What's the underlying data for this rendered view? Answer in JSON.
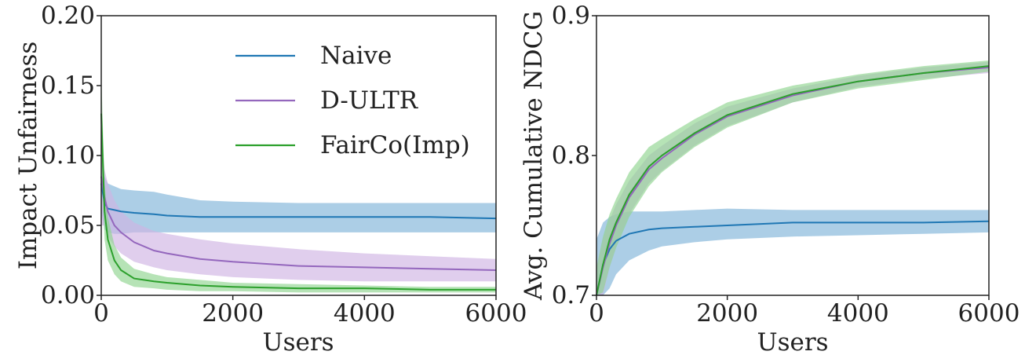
{
  "chart_data": [
    {
      "type": "line",
      "xlabel": "Users",
      "ylabel": "Impact Unfairness",
      "xlim": [
        0,
        6000
      ],
      "ylim": [
        0.0,
        0.2
      ],
      "xticks": [
        0,
        2000,
        4000,
        6000
      ],
      "yticks": [
        0.0,
        0.05,
        0.1,
        0.15,
        0.2
      ],
      "xtick_labels": [
        "0",
        "2000",
        "4000",
        "6000"
      ],
      "ytick_labels": [
        "0.00",
        "0.05",
        "0.10",
        "0.15",
        "0.20"
      ],
      "legend": "top-center",
      "series": [
        {
          "name": "Naive",
          "color": "#1f77b4",
          "band_color": "#7fb3d9",
          "x": [
            0,
            50,
            100,
            200,
            300,
            500,
            800,
            1000,
            1500,
            2000,
            3000,
            4000,
            5000,
            6000
          ],
          "y": [
            0.08,
            0.066,
            0.062,
            0.061,
            0.06,
            0.059,
            0.058,
            0.057,
            0.056,
            0.056,
            0.056,
            0.056,
            0.056,
            0.055
          ],
          "upper": [
            0.1,
            0.085,
            0.08,
            0.078,
            0.076,
            0.075,
            0.074,
            0.072,
            0.068,
            0.067,
            0.066,
            0.066,
            0.066,
            0.066
          ],
          "lower": [
            0.06,
            0.047,
            0.045,
            0.044,
            0.044,
            0.045,
            0.045,
            0.045,
            0.045,
            0.045,
            0.045,
            0.045,
            0.045,
            0.045
          ]
        },
        {
          "name": "D-ULTR",
          "color": "#9467bd",
          "band_color": "#cfb3e3",
          "x": [
            0,
            50,
            100,
            200,
            300,
            500,
            800,
            1000,
            1500,
            2000,
            3000,
            4000,
            5000,
            6000
          ],
          "y": [
            0.085,
            0.07,
            0.06,
            0.05,
            0.045,
            0.038,
            0.032,
            0.03,
            0.026,
            0.024,
            0.021,
            0.02,
            0.019,
            0.018
          ],
          "upper": [
            0.12,
            0.09,
            0.08,
            0.068,
            0.06,
            0.052,
            0.046,
            0.044,
            0.04,
            0.037,
            0.033,
            0.03,
            0.028,
            0.026
          ],
          "lower": [
            0.05,
            0.05,
            0.042,
            0.035,
            0.03,
            0.024,
            0.02,
            0.018,
            0.015,
            0.013,
            0.011,
            0.01,
            0.01,
            0.01
          ]
        },
        {
          "name": "FairCo(Imp)",
          "color": "#2ca02c",
          "band_color": "#8fd48f",
          "x": [
            0,
            50,
            100,
            200,
            300,
            500,
            800,
            1000,
            1500,
            2000,
            3000,
            4000,
            5000,
            6000
          ],
          "y": [
            0.13,
            0.06,
            0.04,
            0.025,
            0.018,
            0.012,
            0.01,
            0.009,
            0.007,
            0.006,
            0.005,
            0.005,
            0.004,
            0.004
          ],
          "upper": [
            0.16,
            0.08,
            0.056,
            0.036,
            0.027,
            0.019,
            0.015,
            0.013,
            0.011,
            0.009,
            0.008,
            0.007,
            0.006,
            0.006
          ],
          "lower": [
            0.1,
            0.04,
            0.025,
            0.015,
            0.01,
            0.006,
            0.005,
            0.004,
            0.003,
            0.003,
            0.002,
            0.002,
            0.002,
            0.002
          ]
        }
      ]
    },
    {
      "type": "line",
      "xlabel": "Users",
      "ylabel": "Avg. Cumulative NDCG",
      "xlim": [
        0,
        6000
      ],
      "ylim": [
        0.7,
        0.9
      ],
      "xticks": [
        0,
        2000,
        4000,
        6000
      ],
      "yticks": [
        0.7,
        0.8,
        0.9
      ],
      "xtick_labels": [
        "0",
        "2000",
        "4000",
        "6000"
      ],
      "ytick_labels": [
        "0.7",
        "0.8",
        "0.9"
      ],
      "series": [
        {
          "name": "Naive",
          "color": "#1f77b4",
          "band_color": "#7fb3d9",
          "x": [
            0,
            100,
            200,
            300,
            500,
            800,
            1000,
            1500,
            2000,
            3000,
            4000,
            5000,
            6000
          ],
          "y": [
            0.7,
            0.722,
            0.733,
            0.739,
            0.744,
            0.747,
            0.748,
            0.749,
            0.75,
            0.752,
            0.752,
            0.752,
            0.753
          ],
          "upper": [
            0.74,
            0.752,
            0.756,
            0.758,
            0.76,
            0.76,
            0.76,
            0.761,
            0.762,
            0.761,
            0.761,
            0.761,
            0.761
          ],
          "lower": [
            0.66,
            0.69,
            0.705,
            0.715,
            0.725,
            0.732,
            0.735,
            0.738,
            0.74,
            0.742,
            0.743,
            0.744,
            0.745
          ]
        },
        {
          "name": "D-ULTR",
          "color": "#9467bd",
          "band_color": "#cfb3e3",
          "x": [
            0,
            100,
            200,
            300,
            500,
            800,
            1000,
            1500,
            2000,
            3000,
            4000,
            5000,
            6000
          ],
          "y": [
            0.7,
            0.72,
            0.737,
            0.75,
            0.77,
            0.79,
            0.798,
            0.815,
            0.828,
            0.843,
            0.853,
            0.859,
            0.863
          ],
          "upper": [
            0.72,
            0.74,
            0.754,
            0.765,
            0.782,
            0.8,
            0.807,
            0.823,
            0.835,
            0.848,
            0.857,
            0.863,
            0.867
          ],
          "lower": [
            0.68,
            0.7,
            0.72,
            0.735,
            0.758,
            0.78,
            0.789,
            0.807,
            0.821,
            0.838,
            0.849,
            0.855,
            0.859
          ]
        },
        {
          "name": "FairCo(Imp)",
          "color": "#2ca02c",
          "band_color": "#8fd48f",
          "x": [
            0,
            100,
            200,
            300,
            500,
            800,
            1000,
            1500,
            2000,
            3000,
            4000,
            5000,
            6000
          ],
          "y": [
            0.7,
            0.722,
            0.74,
            0.752,
            0.772,
            0.792,
            0.8,
            0.816,
            0.829,
            0.844,
            0.853,
            0.859,
            0.864
          ],
          "upper": [
            0.72,
            0.742,
            0.758,
            0.769,
            0.788,
            0.806,
            0.812,
            0.826,
            0.838,
            0.85,
            0.858,
            0.864,
            0.868
          ],
          "lower": [
            0.68,
            0.702,
            0.72,
            0.734,
            0.756,
            0.778,
            0.788,
            0.806,
            0.82,
            0.838,
            0.848,
            0.854,
            0.86
          ]
        }
      ]
    }
  ]
}
